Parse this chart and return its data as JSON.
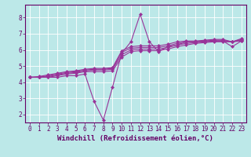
{
  "xlabel": "Windchill (Refroidissement éolien,°C)",
  "ylabel": "",
  "bg_color": "#bce8e8",
  "line_color": "#993399",
  "grid_color": "#ffffff",
  "xlim": [
    -0.5,
    23.5
  ],
  "ylim": [
    1.5,
    8.8
  ],
  "xticks": [
    0,
    1,
    2,
    3,
    4,
    5,
    6,
    7,
    8,
    9,
    10,
    11,
    12,
    13,
    14,
    15,
    16,
    17,
    18,
    19,
    20,
    21,
    22,
    23
  ],
  "yticks": [
    2,
    3,
    4,
    5,
    6,
    7,
    8
  ],
  "series": [
    [
      4.3,
      4.3,
      4.3,
      4.3,
      4.4,
      4.4,
      4.5,
      2.8,
      1.65,
      3.7,
      5.8,
      6.5,
      8.2,
      6.5,
      5.9,
      6.2,
      6.3,
      6.5,
      6.5,
      6.55,
      6.55,
      6.55,
      6.2,
      6.55
    ],
    [
      4.3,
      4.3,
      4.3,
      4.4,
      4.5,
      4.55,
      4.65,
      4.65,
      4.65,
      4.7,
      5.55,
      5.9,
      5.95,
      5.95,
      5.95,
      6.05,
      6.2,
      6.3,
      6.4,
      6.45,
      6.5,
      6.5,
      6.5,
      6.55
    ],
    [
      4.3,
      4.3,
      4.35,
      4.45,
      4.55,
      4.6,
      4.7,
      4.75,
      4.75,
      4.8,
      5.7,
      6.0,
      6.05,
      6.05,
      6.05,
      6.15,
      6.3,
      6.4,
      6.45,
      6.5,
      6.55,
      6.55,
      6.5,
      6.6
    ],
    [
      4.3,
      4.3,
      4.4,
      4.5,
      4.6,
      4.65,
      4.75,
      4.8,
      4.8,
      4.85,
      5.85,
      6.1,
      6.15,
      6.15,
      6.15,
      6.25,
      6.4,
      6.5,
      6.5,
      6.55,
      6.6,
      6.6,
      6.5,
      6.65
    ],
    [
      4.3,
      4.35,
      4.45,
      4.55,
      4.65,
      4.7,
      4.8,
      4.85,
      4.85,
      4.9,
      5.95,
      6.2,
      6.25,
      6.25,
      6.25,
      6.35,
      6.5,
      6.55,
      6.55,
      6.6,
      6.65,
      6.65,
      6.5,
      6.7
    ]
  ],
  "marker": "D",
  "markersize": 2.0,
  "linewidth": 0.8,
  "xlabel_fontsize": 6.5,
  "tick_fontsize": 5.5,
  "axes_color": "#660066",
  "spine_color": "#660066"
}
